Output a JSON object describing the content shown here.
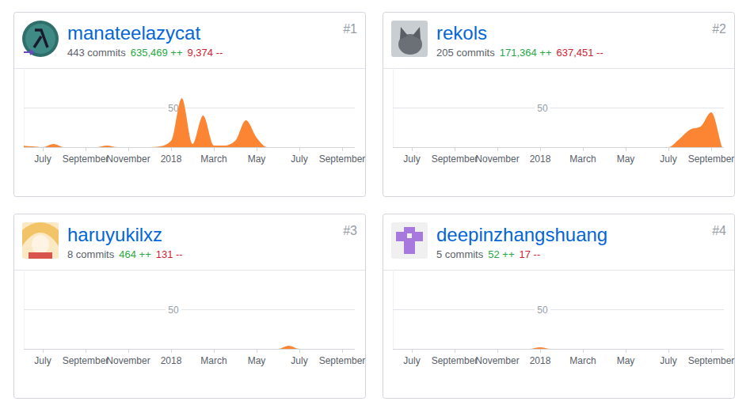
{
  "chart_data": [
    {
      "type": "area",
      "title": "manateelazycat",
      "annotations": [
        "#1",
        "443 commits",
        "635,469 ++",
        "9,374 --"
      ],
      "categories": [
        null,
        null,
        "July",
        null,
        null,
        null,
        "September",
        null,
        null,
        null,
        "November",
        null,
        null,
        null,
        "2018",
        null,
        null,
        null,
        "March",
        null,
        null,
        null,
        "May",
        null,
        null,
        null,
        "July",
        null,
        null,
        null,
        "September",
        null
      ],
      "values": [
        2,
        1,
        0,
        4,
        0,
        0,
        0,
        0,
        2,
        0,
        0,
        0,
        0,
        1,
        8,
        62,
        4,
        40,
        2,
        2,
        8,
        34,
        12,
        0,
        0,
        0,
        0,
        0,
        0,
        0,
        0,
        0
      ],
      "color": "#fb8532",
      "ylim": [
        0,
        100
      ],
      "yticks": [
        50
      ],
      "grid": true
    },
    {
      "type": "area",
      "title": "rekols",
      "annotations": [
        "#2",
        "205 commits",
        "171,364 ++",
        "637,451 --"
      ],
      "categories": [
        null,
        null,
        "July",
        null,
        null,
        null,
        "September",
        null,
        null,
        null,
        "November",
        null,
        null,
        null,
        "2018",
        null,
        null,
        null,
        "March",
        null,
        null,
        null,
        "May",
        null,
        null,
        null,
        "July",
        null,
        null,
        null,
        "September",
        null
      ],
      "values": [
        0,
        0,
        0,
        0,
        0,
        0,
        0,
        0,
        0,
        0,
        0,
        0,
        0,
        0,
        0,
        0,
        0,
        0,
        0,
        0,
        0,
        0,
        0,
        0,
        0,
        0,
        0,
        10,
        22,
        26,
        44,
        0
      ],
      "color": "#fb8532",
      "ylim": [
        0,
        100
      ],
      "yticks": [
        50
      ],
      "grid": true
    },
    {
      "type": "area",
      "title": "haruyukilxz",
      "annotations": [
        "#3",
        "8 commits",
        "464 ++",
        "131 --"
      ],
      "categories": [
        null,
        null,
        "July",
        null,
        null,
        null,
        "September",
        null,
        null,
        null,
        "November",
        null,
        null,
        null,
        "2018",
        null,
        null,
        null,
        "March",
        null,
        null,
        null,
        "May",
        null,
        null,
        null,
        "July",
        null,
        null,
        null,
        "September",
        null
      ],
      "values": [
        0,
        0,
        0,
        0,
        0,
        0,
        0,
        0,
        0,
        0,
        0,
        0,
        0,
        0,
        0,
        0,
        0,
        0,
        0,
        0,
        0,
        0,
        0,
        0,
        0,
        4,
        0,
        0,
        0,
        0,
        0,
        0
      ],
      "color": "#fb8532",
      "ylim": [
        0,
        100
      ],
      "yticks": [
        50
      ],
      "grid": true
    },
    {
      "type": "area",
      "title": "deepinzhangshuang",
      "annotations": [
        "#4",
        "5 commits",
        "52 ++",
        "17 --"
      ],
      "categories": [
        null,
        null,
        "July",
        null,
        null,
        null,
        "September",
        null,
        null,
        null,
        "November",
        null,
        null,
        null,
        "2018",
        null,
        null,
        null,
        "March",
        null,
        null,
        null,
        "May",
        null,
        null,
        null,
        "July",
        null,
        null,
        null,
        "September",
        null
      ],
      "values": [
        0,
        0,
        0,
        0,
        0,
        0,
        0,
        0,
        0,
        0,
        0,
        0,
        0,
        0,
        2,
        0,
        0,
        0,
        0,
        0,
        0,
        0,
        0,
        0,
        0,
        0,
        0,
        0,
        0,
        0,
        0,
        0
      ],
      "color": "#fb8532",
      "ylim": [
        0,
        100
      ],
      "yticks": [
        50
      ],
      "grid": true
    }
  ]
}
